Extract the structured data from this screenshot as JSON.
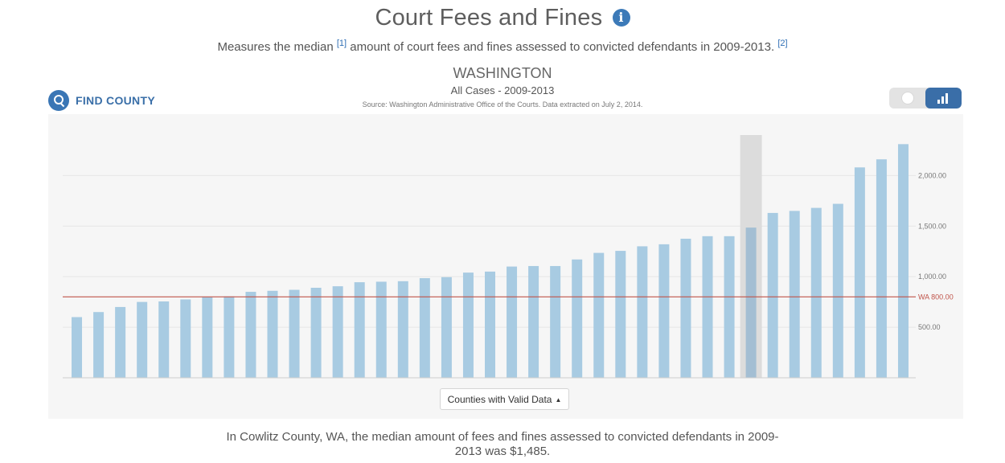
{
  "header": {
    "title": "Court Fees and Fines",
    "subtitle_pre": "Measures the median",
    "ref1": "[1]",
    "subtitle_post": "amount of court fees and fines assessed to convicted defendants in 2009-2013.",
    "ref2": "[2]",
    "info_icon_glyph": "i"
  },
  "chart_header": {
    "state": "WASHINGTON",
    "case_type": "All Cases - 2009-2013",
    "source": "Source: Washington Administrative Office of the Courts. Data extracted on July 2, 2014."
  },
  "controls": {
    "find_county_label": "FIND COUNTY",
    "search_icon": "search-icon",
    "toggle_options": [
      {
        "icon": "globe-icon",
        "active": false
      },
      {
        "icon": "bar-chart-icon",
        "active": true
      }
    ],
    "dropdown_label": "Counties with Valid Data",
    "dropdown_caret": "▲"
  },
  "summary": "In Cowlitz County, WA, the median amount of fees and fines assessed to convicted defendants in 2009-2013 was $1,485.",
  "colors": {
    "bar": "#a8cbe2",
    "highlight_band": "#dcdcdc",
    "reference_line": "#c0544a",
    "accent": "#3a6ea8"
  },
  "chart_data": {
    "type": "bar",
    "values": [
      600,
      650,
      700,
      750,
      755,
      775,
      800,
      805,
      850,
      860,
      870,
      890,
      905,
      945,
      950,
      955,
      985,
      995,
      1040,
      1050,
      1100,
      1105,
      1105,
      1170,
      1235,
      1255,
      1300,
      1320,
      1375,
      1400,
      1400,
      1485,
      1630,
      1650,
      1680,
      1720,
      2080,
      2160,
      2310
    ],
    "highlight_index": 31,
    "highlight_label": "Cowlitz County",
    "ylim": [
      0,
      2400
    ],
    "yticks": [
      500,
      1000,
      1500,
      2000
    ],
    "ytick_labels": [
      "500.00",
      "1,000.00",
      "1,500.00",
      "2,000.00"
    ],
    "reference_line": {
      "value": 800,
      "label": "WA 800.00"
    },
    "y_axis_position": "right",
    "grid": true
  }
}
